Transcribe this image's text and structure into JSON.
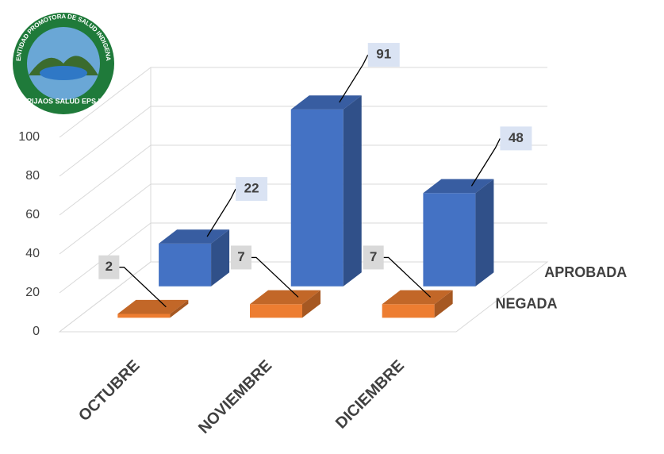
{
  "logo": {
    "arc_text": "ENTIDAD PROMOTORA DE SALUD INDIGENA",
    "name": "PIJAOS SALUD EPS I"
  },
  "chart_data": {
    "type": "bar3d",
    "categories": [
      "OCTUBRE",
      "NOVIEMBRE",
      "DICIEMBRE"
    ],
    "series": [
      {
        "name": "NEGADA",
        "color": "#ed7d31",
        "values": [
          2,
          7,
          7
        ]
      },
      {
        "name": "APROBADA",
        "color": "#4472c4",
        "values": [
          22,
          91,
          48
        ]
      }
    ],
    "ylim": [
      0,
      100
    ],
    "yticks": [
      0,
      20,
      40,
      60,
      80,
      100
    ],
    "grid": true
  }
}
